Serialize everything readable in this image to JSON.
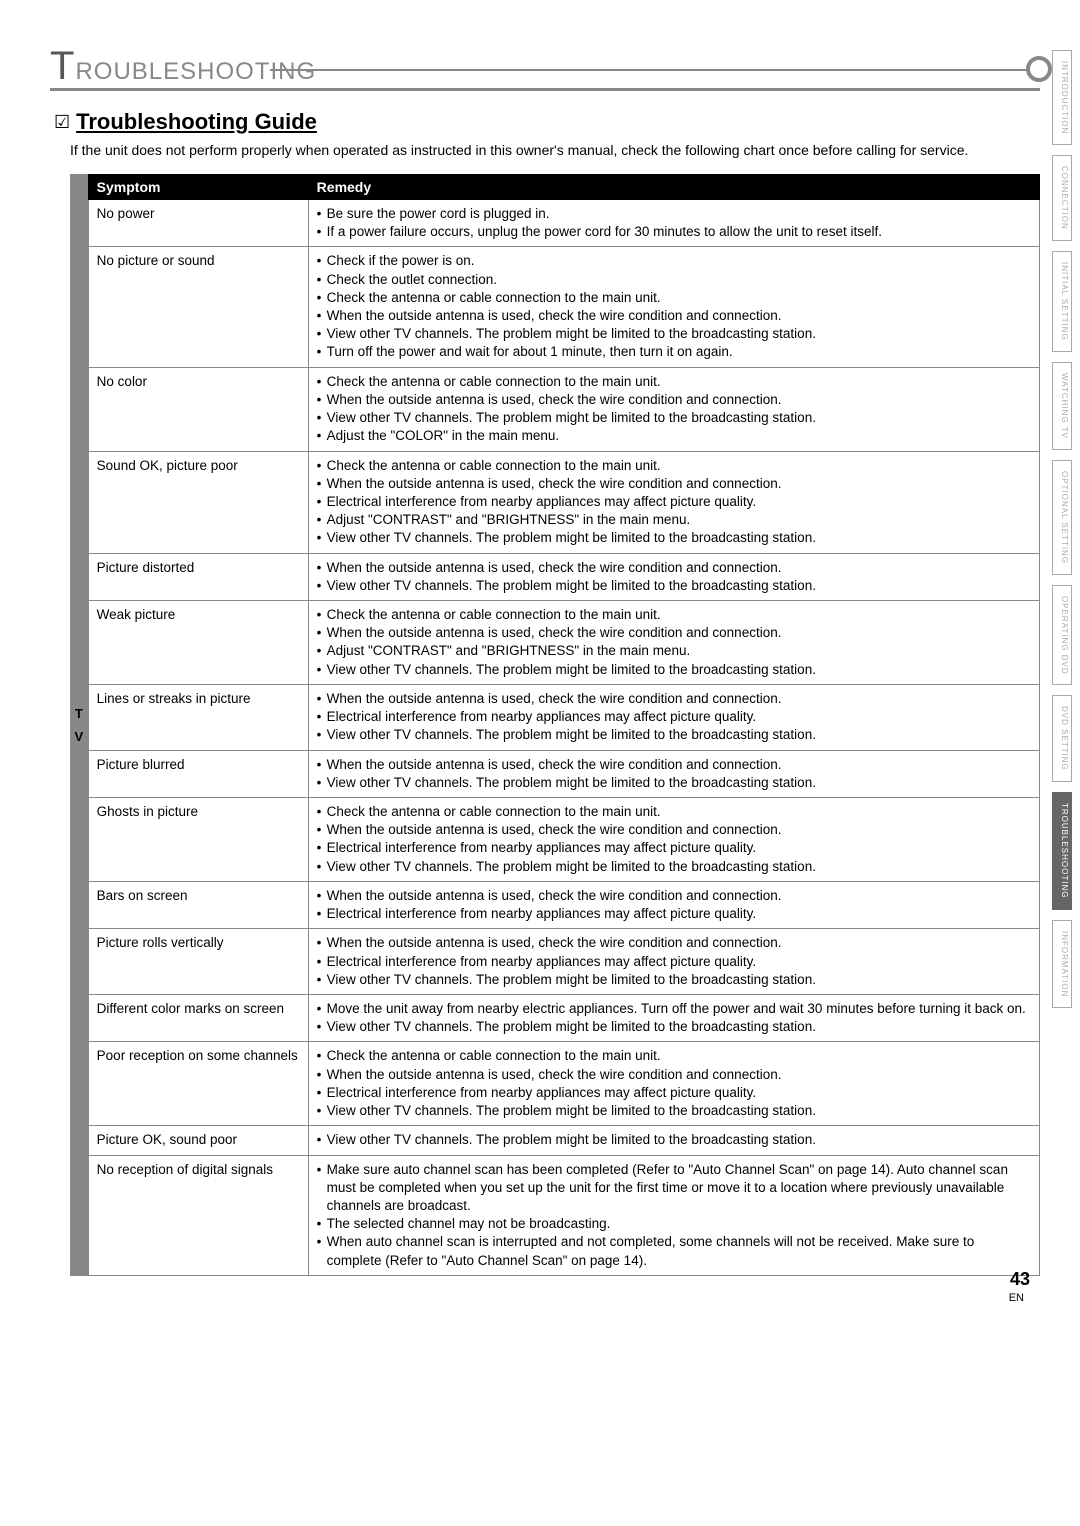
{
  "chapter": {
    "letter": "T",
    "rest": "ROUBLESHOOTING"
  },
  "section": {
    "icon": "☑",
    "title": "Troubleshooting Guide"
  },
  "intro": "If the unit does not perform properly when operated as instructed in this owner's manual, check the following chart once before calling for service.",
  "table": {
    "headers": {
      "symptom": "Symptom",
      "remedy": "Remedy"
    },
    "sidebar": [
      "T",
      "V"
    ],
    "rows": [
      {
        "symptom": "No power",
        "remedy": [
          "Be sure the power cord is plugged in.",
          "If a power failure occurs, unplug the power cord for 30 minutes to allow the unit to reset itself."
        ]
      },
      {
        "symptom": "No picture or sound",
        "remedy": [
          "Check if the power is on.",
          "Check the outlet connection.",
          "Check the antenna or cable connection to the main unit.",
          "When the outside antenna is used, check the wire condition and connection.",
          "View other TV channels. The problem might be limited to the broadcasting station.",
          "Turn off the power and wait for about 1 minute, then turn it on again."
        ]
      },
      {
        "symptom": "No color",
        "remedy": [
          "Check the antenna or cable connection to the main unit.",
          "When the outside antenna is used, check the wire condition and connection.",
          "View other TV channels. The problem might be limited to the broadcasting station.",
          "Adjust the \"COLOR\" in the main menu."
        ]
      },
      {
        "symptom": "Sound OK, picture poor",
        "remedy": [
          "Check the antenna or cable connection to the main unit.",
          "When the outside antenna is used, check the wire condition and connection.",
          "Electrical interference from nearby appliances may affect picture quality.",
          "Adjust \"CONTRAST\" and \"BRIGHTNESS\" in the main menu.",
          "View other TV channels. The problem might be limited to the broadcasting station."
        ]
      },
      {
        "symptom": "Picture distorted",
        "remedy": [
          "When the outside antenna is used, check the wire condition and connection.",
          "View other TV channels.  The problem might be limited to the broadcasting station."
        ]
      },
      {
        "symptom": "Weak picture",
        "remedy": [
          "Check the antenna or cable connection to the main unit.",
          "When the outside antenna is used, check the wire condition and connection.",
          "Adjust \"CONTRAST\" and \"BRIGHTNESS\" in the main menu.",
          "View other TV channels. The problem might be limited to the broadcasting station."
        ]
      },
      {
        "symptom": "Lines or streaks in picture",
        "remedy": [
          "When the outside antenna is used, check the wire condition and connection.",
          "Electrical interference from nearby appliances may affect picture quality.",
          "View other TV channels. The problem might be limited to the broadcasting station."
        ]
      },
      {
        "symptom": "Picture blurred",
        "remedy": [
          "When the outside antenna is used, check the wire condition and connection.",
          "View other TV channels. The problem might be limited to the broadcasting station."
        ]
      },
      {
        "symptom": "Ghosts in picture",
        "remedy": [
          "Check the antenna or cable connection to the main unit.",
          "When the outside antenna is used, check the wire condition and connection.",
          "Electrical interference from nearby appliances may affect picture quality.",
          "View other TV channels. The problem might be limited to the broadcasting station."
        ]
      },
      {
        "symptom": "Bars on screen",
        "remedy": [
          "When the outside antenna is used, check the wire condition and connection.",
          "Electrical interference from nearby appliances may affect picture quality."
        ]
      },
      {
        "symptom": "Picture rolls vertically",
        "remedy": [
          "When the outside antenna is used, check the wire condition and connection.",
          "Electrical interference from nearby appliances may affect picture quality.",
          "View other TV channels. The problem might be limited to the broadcasting station."
        ]
      },
      {
        "symptom": "Different color marks on screen",
        "remedy": [
          "Move the unit away from nearby electric appliances.  Turn off the power and wait 30 minutes before turning it back on.",
          "View other TV channels. The problem might be limited to the broadcasting station."
        ]
      },
      {
        "symptom": "Poor reception on some channels",
        "remedy": [
          "Check the antenna or cable connection to the main unit.",
          "When the outside antenna is used, check the wire condition and connection.",
          "Electrical interference from nearby appliances may affect picture quality.",
          "View other TV channels.  The problem might be limited to the broadcasting station."
        ]
      },
      {
        "symptom": "Picture OK, sound poor",
        "remedy": [
          "View other TV channels. The problem might be limited to the broadcasting station."
        ]
      },
      {
        "symptom": "No reception of digital signals",
        "remedy": [
          "Make sure auto channel scan has been completed (Refer to \"Auto Channel Scan\" on page 14). Auto channel scan must be completed when you set up the unit for the first time or move it to a location where previously unavailable channels are broadcast.",
          "The selected channel may not be broadcasting.",
          "When auto channel scan is interrupted and not completed, some channels will not be received. Make sure to complete (Refer to \"Auto Channel Scan\" on page 14)."
        ]
      }
    ]
  },
  "tabs": [
    {
      "label": "INTRODUCTION",
      "active": false
    },
    {
      "label": "CONNECTION",
      "active": false
    },
    {
      "label": "INITIAL SETTING",
      "active": false
    },
    {
      "label": "WATCHING TV",
      "active": false
    },
    {
      "label": "OPTIONAL SETTING",
      "active": false
    },
    {
      "label": "OPERATING DVD",
      "active": false
    },
    {
      "label": "DVD SETTING",
      "active": false
    },
    {
      "label": "TROUBLESHOOTING",
      "active": true
    },
    {
      "label": "INFORMATION",
      "active": false
    }
  ],
  "page_number": "43",
  "page_lang": "EN"
}
